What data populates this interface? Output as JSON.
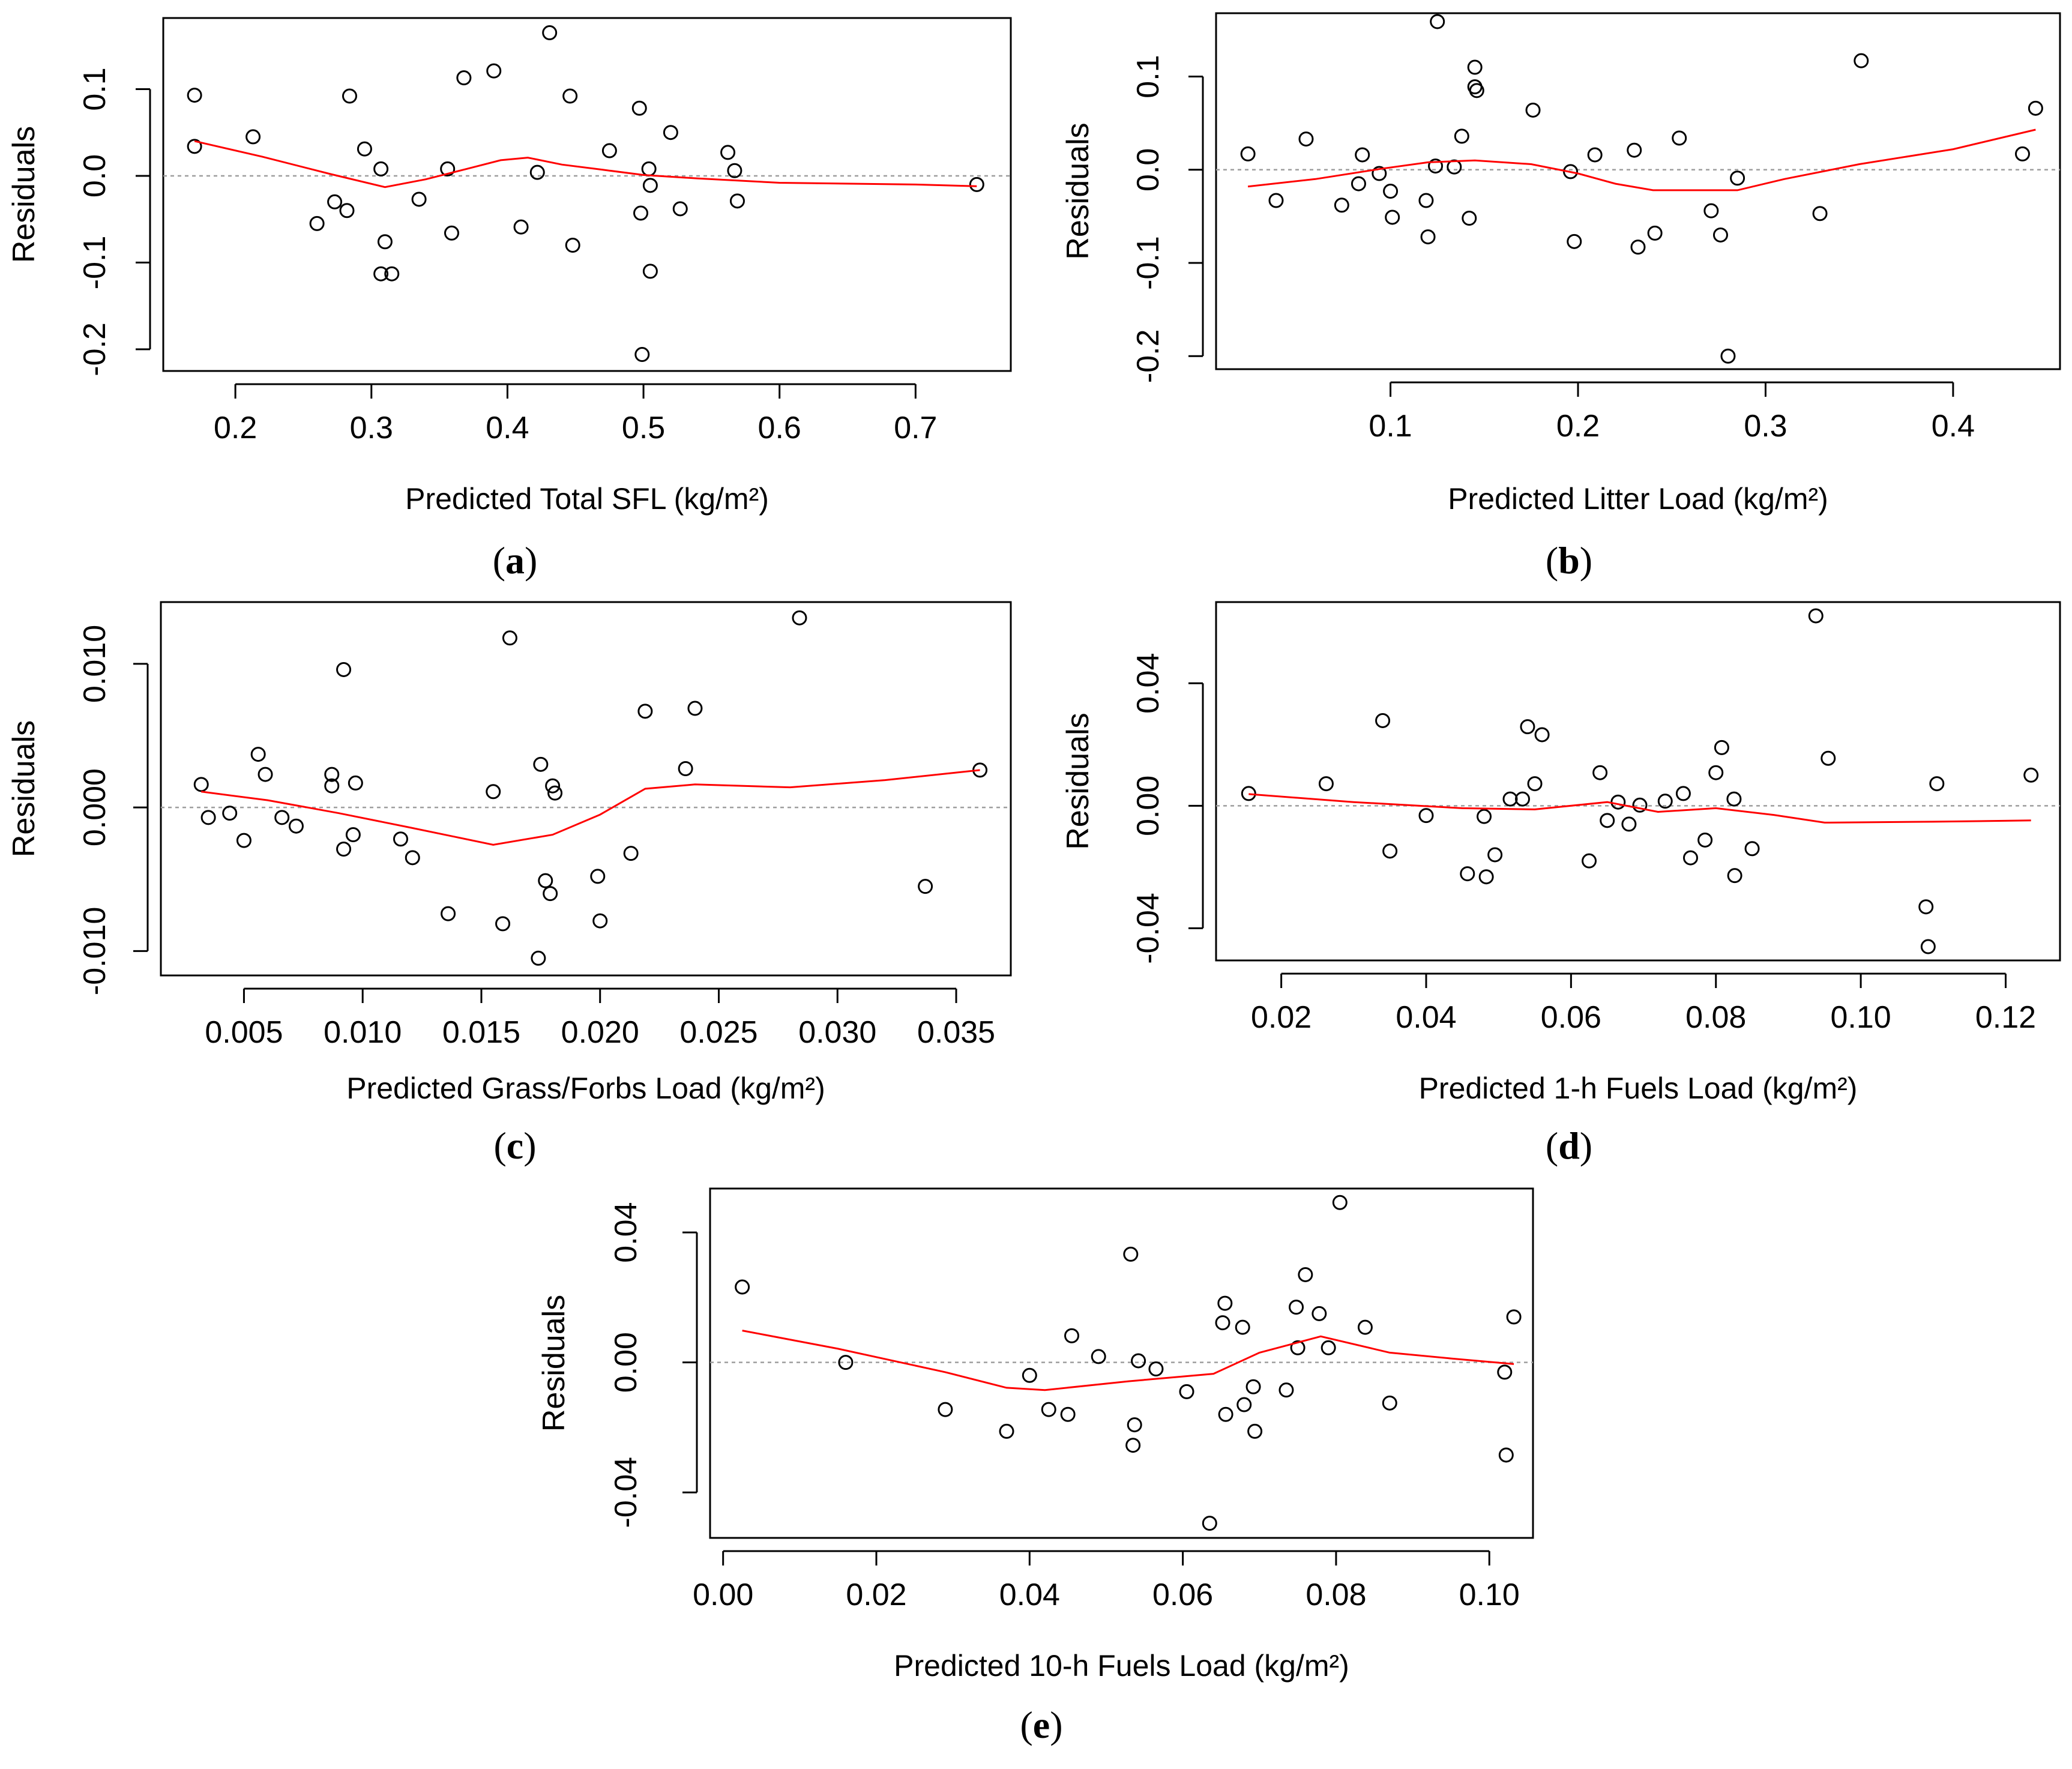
{
  "colors": {
    "smooth": "#ff0000",
    "points": "#000000",
    "zero_line": "#9e9e9e",
    "axes": "#000000"
  },
  "chart_data": [
    {
      "id": "a",
      "type": "scatter",
      "panel_label": "a",
      "xlabel": "Predicted Total SFL (kg/m²)",
      "ylabel": "Residuals",
      "xlim": [
        0.147,
        0.77
      ],
      "ylim": [
        -0.225,
        0.182
      ],
      "xticks": [
        0.2,
        0.3,
        0.4,
        0.5,
        0.6,
        0.7
      ],
      "xtick_labels": [
        "0.2",
        "0.3",
        "0.4",
        "0.5",
        "0.6",
        "0.7"
      ],
      "yticks": [
        -0.2,
        -0.1,
        0.0,
        0.1
      ],
      "ytick_labels": [
        "-0.2",
        "-0.1",
        "0.0",
        "0.1"
      ],
      "points": [
        [
          0.17,
          0.093
        ],
        [
          0.17,
          0.034
        ],
        [
          0.213,
          0.045
        ],
        [
          0.26,
          -0.055
        ],
        [
          0.273,
          -0.03
        ],
        [
          0.282,
          -0.04
        ],
        [
          0.284,
          0.092
        ],
        [
          0.295,
          0.031
        ],
        [
          0.307,
          0.008
        ],
        [
          0.307,
          -0.113
        ],
        [
          0.31,
          -0.076
        ],
        [
          0.315,
          -0.113
        ],
        [
          0.335,
          -0.027
        ],
        [
          0.356,
          0.008
        ],
        [
          0.359,
          -0.066
        ],
        [
          0.368,
          0.113
        ],
        [
          0.39,
          0.121
        ],
        [
          0.41,
          -0.059
        ],
        [
          0.422,
          0.004
        ],
        [
          0.431,
          0.165
        ],
        [
          0.446,
          0.092
        ],
        [
          0.448,
          -0.08
        ],
        [
          0.475,
          0.029
        ],
        [
          0.497,
          0.078
        ],
        [
          0.498,
          -0.043
        ],
        [
          0.499,
          -0.206
        ],
        [
          0.504,
          0.008
        ],
        [
          0.505,
          -0.011
        ],
        [
          0.505,
          -0.11
        ],
        [
          0.52,
          0.05
        ],
        [
          0.527,
          -0.038
        ],
        [
          0.562,
          0.027
        ],
        [
          0.567,
          0.006
        ],
        [
          0.569,
          -0.029
        ],
        [
          0.745,
          -0.01
        ]
      ],
      "smooth": [
        [
          0.17,
          0.04
        ],
        [
          0.22,
          0.022
        ],
        [
          0.27,
          0.002
        ],
        [
          0.31,
          -0.013
        ],
        [
          0.34,
          -0.004
        ],
        [
          0.37,
          0.008
        ],
        [
          0.395,
          0.018
        ],
        [
          0.415,
          0.021
        ],
        [
          0.44,
          0.013
        ],
        [
          0.47,
          0.007
        ],
        [
          0.5,
          0.001
        ],
        [
          0.54,
          -0.003
        ],
        [
          0.6,
          -0.008
        ],
        [
          0.7,
          -0.01
        ],
        [
          0.745,
          -0.012
        ]
      ]
    },
    {
      "id": "b",
      "type": "scatter",
      "panel_label": "b",
      "xlabel": "Predicted Litter Load (kg/m²)",
      "ylabel": "Residuals",
      "xlim": [
        0.007,
        0.457
      ],
      "ylim": [
        -0.214,
        0.168
      ],
      "xticks": [
        0.1,
        0.2,
        0.3,
        0.4
      ],
      "xtick_labels": [
        "0.1",
        "0.2",
        "0.3",
        "0.4"
      ],
      "yticks": [
        -0.2,
        -0.1,
        0.0,
        0.1
      ],
      "ytick_labels": [
        "-0.2",
        "-0.1",
        "0.0",
        "0.1"
      ],
      "points": [
        [
          0.024,
          0.017
        ],
        [
          0.039,
          -0.033
        ],
        [
          0.055,
          0.033
        ],
        [
          0.074,
          -0.038
        ],
        [
          0.083,
          -0.015
        ],
        [
          0.085,
          0.016
        ],
        [
          0.094,
          -0.004
        ],
        [
          0.1,
          -0.023
        ],
        [
          0.101,
          -0.051
        ],
        [
          0.119,
          -0.033
        ],
        [
          0.12,
          -0.072
        ],
        [
          0.124,
          0.004
        ],
        [
          0.125,
          0.159
        ],
        [
          0.134,
          0.003
        ],
        [
          0.138,
          0.036
        ],
        [
          0.142,
          -0.052
        ],
        [
          0.145,
          0.11
        ],
        [
          0.145,
          0.089
        ],
        [
          0.146,
          0.085
        ],
        [
          0.176,
          0.064
        ],
        [
          0.196,
          -0.002
        ],
        [
          0.198,
          -0.077
        ],
        [
          0.209,
          0.016
        ],
        [
          0.23,
          0.021
        ],
        [
          0.232,
          -0.083
        ],
        [
          0.241,
          -0.068
        ],
        [
          0.254,
          0.034
        ],
        [
          0.271,
          -0.044
        ],
        [
          0.276,
          -0.07
        ],
        [
          0.28,
          -0.2
        ],
        [
          0.285,
          -0.009
        ],
        [
          0.329,
          -0.047
        ],
        [
          0.351,
          0.117
        ],
        [
          0.437,
          0.017
        ],
        [
          0.444,
          0.066
        ]
      ],
      "smooth": [
        [
          0.024,
          -0.018
        ],
        [
          0.06,
          -0.01
        ],
        [
          0.095,
          0.001
        ],
        [
          0.12,
          0.008
        ],
        [
          0.145,
          0.01
        ],
        [
          0.175,
          0.006
        ],
        [
          0.2,
          -0.004
        ],
        [
          0.22,
          -0.015
        ],
        [
          0.24,
          -0.022
        ],
        [
          0.285,
          -0.022
        ],
        [
          0.31,
          -0.01
        ],
        [
          0.35,
          0.006
        ],
        [
          0.4,
          0.022
        ],
        [
          0.444,
          0.043
        ]
      ]
    },
    {
      "id": "c",
      "type": "scatter",
      "panel_label": "c",
      "xlabel": "Predicted Grass/Forbs Load (kg/m²)",
      "ylabel": "Residuals",
      "xlim": [
        0.0015,
        0.0373
      ],
      "ylim": [
        -0.0117,
        0.0143
      ],
      "xticks": [
        0.005,
        0.01,
        0.015,
        0.02,
        0.025,
        0.03,
        0.035
      ],
      "xtick_labels": [
        "0.005",
        "0.010",
        "0.015",
        "0.020",
        "0.025",
        "0.030",
        "0.035"
      ],
      "yticks": [
        -0.01,
        0.0,
        0.01
      ],
      "ytick_labels": [
        "-0.010",
        "0.000",
        "0.010"
      ],
      "points": [
        [
          0.0032,
          0.0016
        ],
        [
          0.0035,
          -0.0007
        ],
        [
          0.0044,
          -0.0004
        ],
        [
          0.005,
          -0.0023
        ],
        [
          0.0056,
          0.0037
        ],
        [
          0.0059,
          0.0023
        ],
        [
          0.0066,
          -0.0007
        ],
        [
          0.0072,
          -0.0013
        ],
        [
          0.0087,
          0.0023
        ],
        [
          0.0087,
          0.0015
        ],
        [
          0.0092,
          -0.0029
        ],
        [
          0.0092,
          0.0096
        ],
        [
          0.0096,
          -0.0019
        ],
        [
          0.0097,
          0.0017
        ],
        [
          0.0116,
          -0.0022
        ],
        [
          0.0121,
          -0.0035
        ],
        [
          0.0136,
          -0.0074
        ],
        [
          0.0155,
          0.0011
        ],
        [
          0.0159,
          -0.0081
        ],
        [
          0.0162,
          0.0118
        ],
        [
          0.0174,
          -0.0105
        ],
        [
          0.0175,
          0.003
        ],
        [
          0.0177,
          -0.0051
        ],
        [
          0.0179,
          -0.006
        ],
        [
          0.018,
          0.0015
        ],
        [
          0.0181,
          0.001
        ],
        [
          0.0199,
          -0.0048
        ],
        [
          0.02,
          -0.0079
        ],
        [
          0.0213,
          -0.0032
        ],
        [
          0.0219,
          0.0067
        ],
        [
          0.0236,
          0.0027
        ],
        [
          0.024,
          0.0069
        ],
        [
          0.0284,
          0.0132
        ],
        [
          0.0337,
          -0.0055
        ],
        [
          0.036,
          0.0026
        ]
      ],
      "smooth": [
        [
          0.0032,
          0.0011
        ],
        [
          0.006,
          0.0005
        ],
        [
          0.009,
          -0.0004
        ],
        [
          0.012,
          -0.0014
        ],
        [
          0.0155,
          -0.0026
        ],
        [
          0.018,
          -0.0019
        ],
        [
          0.02,
          -0.0005
        ],
        [
          0.0219,
          0.0013
        ],
        [
          0.024,
          0.0016
        ],
        [
          0.028,
          0.0014
        ],
        [
          0.032,
          0.0019
        ],
        [
          0.036,
          0.0026
        ]
      ]
    },
    {
      "id": "d",
      "type": "scatter",
      "panel_label": "d",
      "xlabel": "Predicted 1-h Fuels Load (kg/m²)",
      "ylabel": "Residuals",
      "xlim": [
        0.011,
        0.1275
      ],
      "ylim": [
        -0.0505,
        0.0665
      ],
      "xticks": [
        0.02,
        0.04,
        0.06,
        0.08,
        0.1,
        0.12
      ],
      "xtick_labels": [
        "0.02",
        "0.04",
        "0.06",
        "0.08",
        "0.10",
        "0.12"
      ],
      "yticks": [
        -0.04,
        0.0,
        0.04
      ],
      "ytick_labels": [
        "-0.04",
        "0.00",
        "0.04"
      ],
      "points": [
        [
          0.0155,
          0.004
        ],
        [
          0.0262,
          0.0072
        ],
        [
          0.034,
          0.0278
        ],
        [
          0.035,
          -0.0148
        ],
        [
          0.04,
          -0.0032
        ],
        [
          0.0457,
          -0.0222
        ],
        [
          0.048,
          -0.0035
        ],
        [
          0.0483,
          -0.0232
        ],
        [
          0.0495,
          -0.016
        ],
        [
          0.0516,
          0.0022
        ],
        [
          0.0533,
          0.0022
        ],
        [
          0.054,
          0.0258
        ],
        [
          0.055,
          0.0072
        ],
        [
          0.056,
          0.0232
        ],
        [
          0.0625,
          -0.018
        ],
        [
          0.064,
          0.0108
        ],
        [
          0.065,
          -0.0048
        ],
        [
          0.0665,
          0.0012
        ],
        [
          0.068,
          -0.006
        ],
        [
          0.0695,
          0.0002
        ],
        [
          0.073,
          0.0015
        ],
        [
          0.0755,
          0.004
        ],
        [
          0.0765,
          -0.017
        ],
        [
          0.0785,
          -0.0112
        ],
        [
          0.08,
          0.0108
        ],
        [
          0.0808,
          0.019
        ],
        [
          0.0825,
          0.0022
        ],
        [
          0.0826,
          -0.0228
        ],
        [
          0.085,
          -0.014
        ],
        [
          0.0938,
          0.062
        ],
        [
          0.0955,
          0.0155
        ],
        [
          0.109,
          -0.033
        ],
        [
          0.1093,
          -0.046
        ],
        [
          0.1105,
          0.0072
        ],
        [
          0.1235,
          0.01
        ]
      ],
      "smooth": [
        [
          0.0155,
          0.0038
        ],
        [
          0.03,
          0.0012
        ],
        [
          0.045,
          -0.0008
        ],
        [
          0.055,
          -0.0012
        ],
        [
          0.065,
          0.0012
        ],
        [
          0.072,
          -0.002
        ],
        [
          0.08,
          -0.0008
        ],
        [
          0.088,
          -0.003
        ],
        [
          0.095,
          -0.0055
        ],
        [
          0.11,
          -0.0052
        ],
        [
          0.1235,
          -0.0048
        ]
      ]
    },
    {
      "id": "e",
      "type": "scatter",
      "panel_label": "e",
      "xlabel": "Predicted 10-h Fuels Load (kg/m²)",
      "ylabel": "Residuals",
      "xlim": [
        -0.0017,
        0.1057
      ],
      "ylim": [
        -0.054,
        0.0535
      ],
      "xticks": [
        0.0,
        0.02,
        0.04,
        0.06,
        0.08,
        0.1
      ],
      "xtick_labels": [
        "0.00",
        "0.02",
        "0.04",
        "0.06",
        "0.08",
        "0.10"
      ],
      "yticks": [
        -0.04,
        0.0,
        0.04
      ],
      "ytick_labels": [
        "-0.04",
        "0.00",
        "0.04"
      ],
      "points": [
        [
          0.0025,
          0.0232
        ],
        [
          0.016,
          0.0
        ],
        [
          0.029,
          -0.0145
        ],
        [
          0.037,
          -0.0212
        ],
        [
          0.04,
          -0.004
        ],
        [
          0.0425,
          -0.0145
        ],
        [
          0.045,
          -0.016
        ],
        [
          0.0455,
          0.0082
        ],
        [
          0.049,
          0.0018
        ],
        [
          0.0532,
          0.0333
        ],
        [
          0.0535,
          -0.0255
        ],
        [
          0.0537,
          -0.0192
        ],
        [
          0.0542,
          0.0005
        ],
        [
          0.0565,
          -0.002
        ],
        [
          0.0605,
          -0.009
        ],
        [
          0.0635,
          -0.0495
        ],
        [
          0.0652,
          0.0122
        ],
        [
          0.0655,
          0.0182
        ],
        [
          0.0656,
          -0.016
        ],
        [
          0.0678,
          0.0108
        ],
        [
          0.068,
          -0.013
        ],
        [
          0.0692,
          -0.0075
        ],
        [
          0.0694,
          -0.0212
        ],
        [
          0.0735,
          -0.0085
        ],
        [
          0.0748,
          0.017
        ],
        [
          0.075,
          0.0045
        ],
        [
          0.076,
          0.027
        ],
        [
          0.0778,
          0.015
        ],
        [
          0.079,
          0.0045
        ],
        [
          0.0805,
          0.0492
        ],
        [
          0.0838,
          0.0108
        ],
        [
          0.087,
          -0.0125
        ],
        [
          0.102,
          -0.003
        ],
        [
          0.1022,
          -0.0285
        ],
        [
          0.1032,
          0.014
        ]
      ],
      "smooth": [
        [
          0.0025,
          0.0098
        ],
        [
          0.015,
          0.0042
        ],
        [
          0.029,
          -0.003
        ],
        [
          0.037,
          -0.0078
        ],
        [
          0.042,
          -0.0085
        ],
        [
          0.053,
          -0.0058
        ],
        [
          0.064,
          -0.0035
        ],
        [
          0.07,
          0.003
        ],
        [
          0.078,
          0.008
        ],
        [
          0.087,
          0.003
        ],
        [
          0.095,
          0.0012
        ],
        [
          0.1032,
          -0.0005
        ]
      ]
    }
  ]
}
